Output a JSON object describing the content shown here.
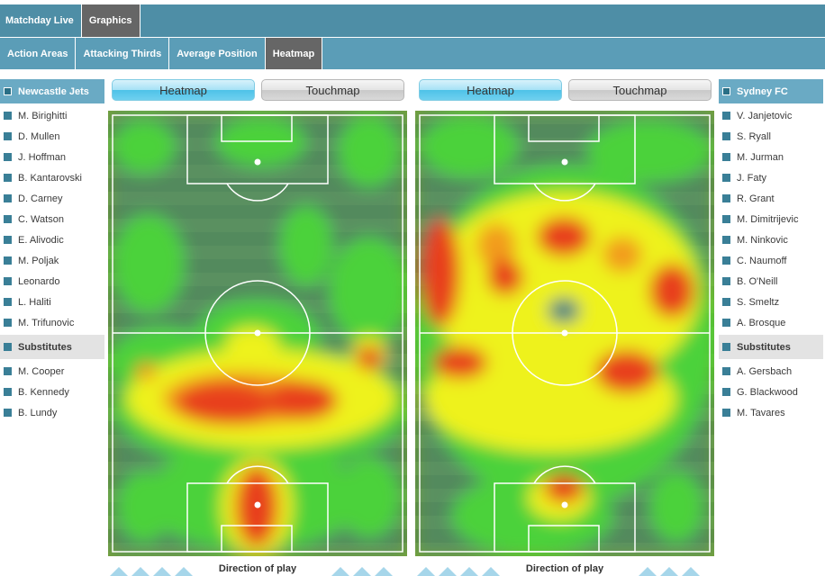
{
  "nav": {
    "primary": [
      {
        "label": "Matchday Live",
        "active": false
      },
      {
        "label": "Graphics",
        "active": true
      }
    ],
    "secondary": [
      {
        "label": "Action Areas",
        "active": false
      },
      {
        "label": "Attacking Thirds",
        "active": false
      },
      {
        "label": "Average Position",
        "active": false
      },
      {
        "label": "Heatmap",
        "active": true
      }
    ]
  },
  "home": {
    "team": "Newcastle Jets",
    "players": [
      "M. Birighitti",
      "D. Mullen",
      "J. Hoffman",
      "B. Kantarovski",
      "D. Carney",
      "C. Watson",
      "E. Alivodic",
      "M. Poljak",
      "Leonardo",
      "L. Haliti",
      "M. Trifunovic"
    ],
    "subs_label": "Substitutes",
    "subs": [
      "M. Cooper",
      "B. Kennedy",
      "B. Lundy"
    ]
  },
  "away": {
    "team": "Sydney FC",
    "players": [
      "V. Janjetovic",
      "S. Ryall",
      "M. Jurman",
      "J. Faty",
      "R. Grant",
      "M. Dimitrijevic",
      "M. Ninkovic",
      "C. Naumoff",
      "B. O'Neill",
      "S. Smeltz",
      "A. Brosque"
    ],
    "subs_label": "Substitutes",
    "subs": [
      "A. Gersbach",
      "G. Blackwood",
      "M. Tavares"
    ]
  },
  "toggles": {
    "heatmap_label": "Heatmap",
    "touchmap_label": "Touchmap",
    "active": "Heatmap"
  },
  "footer": {
    "direction_label": "Direction of play"
  },
  "icons": {
    "team_marker": "square-icon",
    "direction": "chevron-up-icon"
  },
  "colors": {
    "nav_dark": "#4e8ea6",
    "nav_light": "#5b9db7",
    "active_tab": "#666666",
    "team_header": "#6aaac4",
    "pitch_base": "#6f9a2b",
    "heat_low": "#2f6f8f",
    "heat_mid": "#ffff00",
    "heat_high": "#e8401a"
  }
}
